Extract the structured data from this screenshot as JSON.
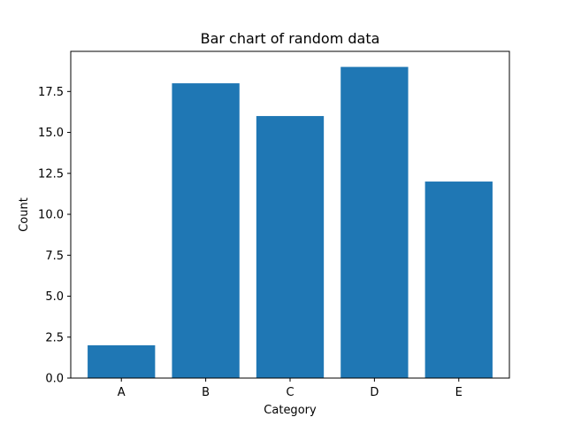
{
  "chart_data": {
    "type": "bar",
    "title": "Bar chart of random data",
    "xlabel": "Category",
    "ylabel": "Count",
    "categories": [
      "A",
      "B",
      "C",
      "D",
      "E"
    ],
    "values": [
      2,
      18,
      16,
      19,
      12
    ],
    "ylim": [
      0,
      19.95
    ],
    "yticks": [
      0.0,
      2.5,
      5.0,
      7.5,
      10.0,
      12.5,
      15.0,
      17.5
    ],
    "ytick_labels": [
      "0.0",
      "2.5",
      "5.0",
      "7.5",
      "10.0",
      "12.5",
      "15.0",
      "17.5"
    ],
    "bar_color": "#1f77b4",
    "grid": false,
    "legend": "none"
  }
}
